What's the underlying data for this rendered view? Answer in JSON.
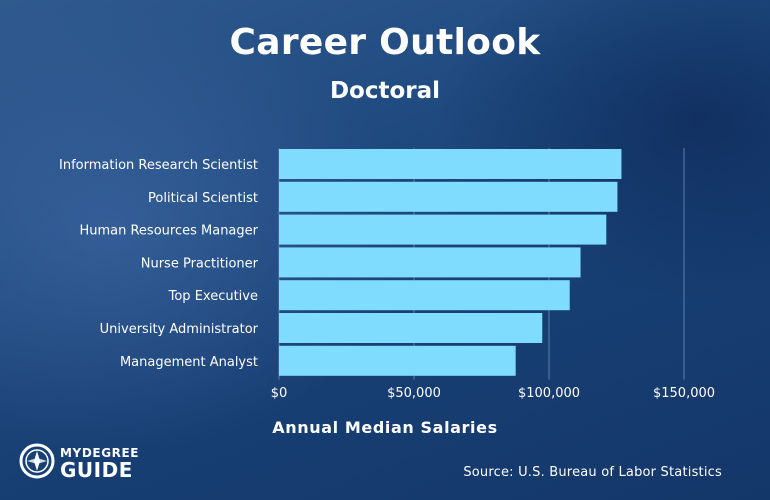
{
  "chart_data": {
    "type": "bar",
    "orientation": "horizontal",
    "title": "Career Outlook",
    "subtitle": "Doctoral",
    "xlabel": "Annual Median Salaries",
    "ylabel": "",
    "categories": [
      "Information Research Scientist",
      "Political Scientist",
      "Human Resources Manager",
      "Nurse Practitioner",
      "Top Executive",
      "University Administrator",
      "Management Analyst"
    ],
    "values": [
      126830,
      125350,
      121220,
      111680,
      107680,
      97500,
      87660
    ],
    "xlim": [
      0,
      150000
    ],
    "xticks": [
      0,
      50000,
      100000,
      150000
    ],
    "xtick_labels": [
      "$0",
      "$50,000",
      "$100,000",
      "$150,000"
    ],
    "grid": true,
    "legend": "none",
    "bar_color": "#7fdcff",
    "grid_color": "#5a7fae"
  },
  "source": "Source: U.S. Bureau of Labor Statistics",
  "logo": {
    "line1": "MYDEGREE",
    "line2": "GUIDE",
    "icon": "compass-icon"
  }
}
